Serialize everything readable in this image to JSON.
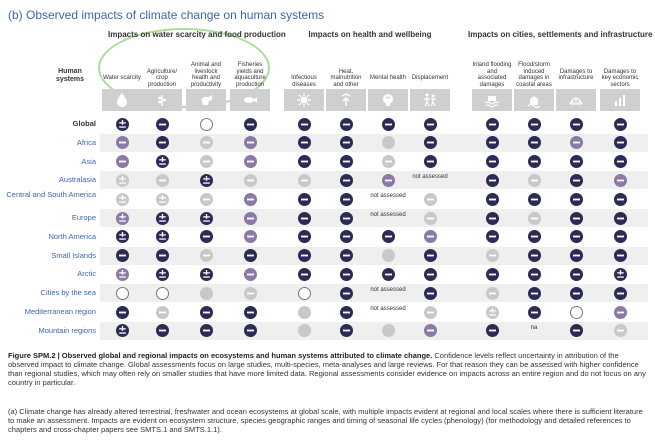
{
  "title": "(b) Observed impacts of climate change on human systems",
  "row_header": "Human systems",
  "groups": [
    {
      "label": "Impacts on water scarcity and food production",
      "cols": [
        0,
        1,
        2,
        3
      ]
    },
    {
      "label": "Impacts on health and wellbeing",
      "cols": [
        4,
        5,
        6,
        7
      ]
    },
    {
      "label": "Impacts on cities, settlements and infrastructure",
      "cols": [
        8,
        9,
        10,
        11
      ]
    }
  ],
  "columns": [
    {
      "label": "Water scarcity",
      "icon": "water-drop-icon"
    },
    {
      "label": "Agriculture/ crop production",
      "icon": "crop-icon"
    },
    {
      "label": "Animal and livestock health and productivity",
      "icon": "livestock-icon"
    },
    {
      "label": "Fisheries yields and aquaculture production",
      "icon": "fish-icon"
    },
    {
      "label": "Infectious diseases",
      "icon": "virus-icon"
    },
    {
      "label": "Heat, malnutrition and other",
      "icon": "heat-icon"
    },
    {
      "label": "Mental health",
      "icon": "mental-health-icon"
    },
    {
      "label": "Displacement",
      "icon": "displacement-icon"
    },
    {
      "label": "Inland flooding and associated damages",
      "icon": "flooding-icon"
    },
    {
      "label": "Flood/storm induced damages in coastal areas",
      "icon": "storm-icon"
    },
    {
      "label": "Damages to infrastructure",
      "icon": "infrastructure-icon"
    },
    {
      "label": "Damages to key economic sectors",
      "icon": "economy-icon"
    }
  ],
  "legend_colors": {
    "d": "#2b2b55",
    "m": "#8b7aa8",
    "l": "#c8c8c8",
    "e": "#ffffff"
  },
  "rows": [
    {
      "label": "Global",
      "bold": true,
      "cells": [
        "dpm",
        "dm",
        "e",
        "dm",
        "dm",
        "dm",
        "dm",
        "dm",
        "dm",
        "dm",
        "dm",
        "dm"
      ]
    },
    {
      "label": "Africa",
      "bold": false,
      "cells": [
        "mm",
        "dm",
        "lm",
        "mm",
        "dm",
        "dm",
        "le",
        "dm",
        "dm",
        "dm",
        "mm",
        "dm"
      ]
    },
    {
      "label": "Asia",
      "bold": false,
      "cells": [
        "mm",
        "dpm",
        "lm",
        "mm",
        "dm",
        "dm",
        "lm",
        "dm",
        "dm",
        "dm",
        "dm",
        "dm"
      ]
    },
    {
      "label": "Australasia",
      "bold": false,
      "cells": [
        "lpm",
        "lm",
        "dpm",
        "lm",
        "lm",
        "dm",
        "mm",
        "text:not assessed",
        "dm",
        "lm",
        "dm",
        "mm"
      ]
    },
    {
      "label": "Central and South America",
      "bold": false,
      "cells": [
        "lpm",
        "lpm",
        "lm",
        "mm",
        "dm",
        "dm",
        "text:not assessed",
        "lm",
        "dm",
        "dm",
        "dm",
        "dm"
      ]
    },
    {
      "label": "Europe",
      "bold": false,
      "cells": [
        "mpm",
        "dpm",
        "dpm",
        "mm",
        "dm",
        "dm",
        "text:not assessed",
        "lm",
        "dm",
        "lm",
        "dm",
        "dm"
      ]
    },
    {
      "label": "North America",
      "bold": false,
      "cells": [
        "dpm",
        "dpm",
        "dm",
        "mm",
        "dm",
        "dm",
        "dm",
        "mm",
        "dm",
        "dm",
        "dm",
        "dm"
      ]
    },
    {
      "label": "Small Islands",
      "bold": false,
      "cells": [
        "dm",
        "dm",
        "lm",
        "dm",
        "dm",
        "dm",
        "le",
        "dm",
        "lm",
        "dm",
        "dm",
        "dm"
      ]
    },
    {
      "label": "Arctic",
      "bold": false,
      "cells": [
        "mpm",
        "dpm",
        "dpm",
        "mm",
        "dm",
        "dm",
        "dm",
        "dm",
        "dm",
        "dm",
        "dm",
        "dpm"
      ]
    },
    {
      "label": "Cities by the sea",
      "bold": false,
      "cells": [
        "e",
        "e",
        "le",
        "lm",
        "e",
        "dm",
        "text:not assessed",
        "dm",
        "lm",
        "dm",
        "dm",
        "dm"
      ]
    },
    {
      "label": "Mediterranean region",
      "bold": false,
      "cells": [
        "dm",
        "lm",
        "dm",
        "dm",
        "le",
        "dm",
        "text:not assessed",
        "lm",
        "lpm",
        "dm",
        "e",
        "mm"
      ]
    },
    {
      "label": "Mountain regions",
      "bold": false,
      "cells": [
        "dpm",
        "dm",
        "dm",
        "dm",
        "le",
        "dm",
        "le",
        "mm",
        "dm",
        "text:na",
        "dm",
        "lm"
      ]
    }
  ],
  "caption_title": "Figure SPM.2 |  Observed global and regional impacts on ecosystems and human systems attributed to climate change.",
  "caption_body": " Confidence levels reflect uncertainty in attribution of the observed impact to climate change. Global assessments focus on large studies, multi-species, meta-analyses and large reviews. For that reason they can be assessed with higher confidence than regional studies, which may often rely on smaller studies that have more limited data. Regional assessments consider evidence on impacts across an entire region and do not focus on any country in particular.",
  "note_a": "(a)  Climate change has already altered terrestrial, freshwater and ocean ecosystems at global scale, with multiple impacts evident at regional and local scales where there is sufficient literature to make an assessment. Impacts are evident on ecosystem structure, species geographic ranges and timing of seasonal life cycles (phenology) (for methodology and detailed references to chapters and cross-chapter papers see SMTS.1 and SMTS.1.1)."
}
